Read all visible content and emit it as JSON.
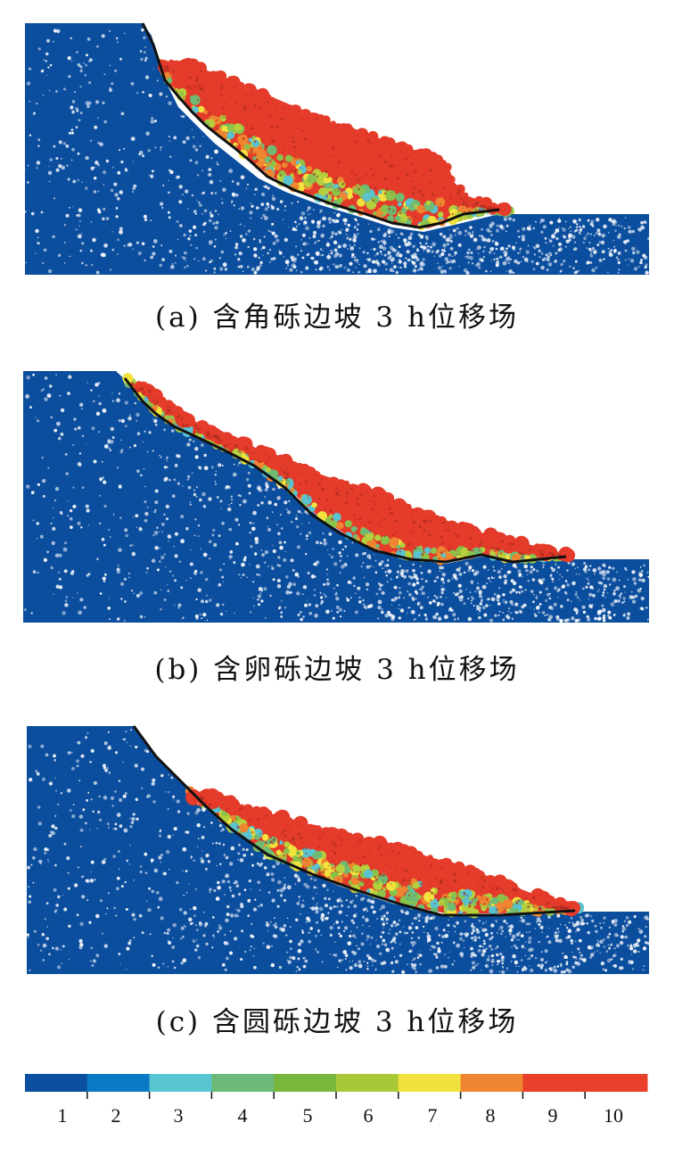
{
  "panels": [
    {
      "id": "a",
      "caption": "(a) 含角砾边坡 3 h位移场"
    },
    {
      "id": "b",
      "caption": "(b) 含卵砾边坡 3 h位移场"
    },
    {
      "id": "c",
      "caption": "(c) 含圆砾边坡 3 h位移场"
    }
  ],
  "legend": {
    "colors": [
      "#0a4fa0",
      "#0a7ac4",
      "#5ac6d2",
      "#6cba78",
      "#77b83c",
      "#a9c838",
      "#f1e23e",
      "#ef8530",
      "#e8402a",
      "#e8402a"
    ],
    "tick_labels": [
      "1",
      "2",
      "3",
      "4",
      "5",
      "6",
      "7",
      "8",
      "9",
      "10"
    ]
  },
  "palette": {
    "stable": "#0c4e9e",
    "fast": "#e43b2a",
    "mid": [
      "#59c3cf",
      "#6fbb73",
      "#8bc34a",
      "#b6cf3c",
      "#f1e23e",
      "#ef8530"
    ]
  }
}
